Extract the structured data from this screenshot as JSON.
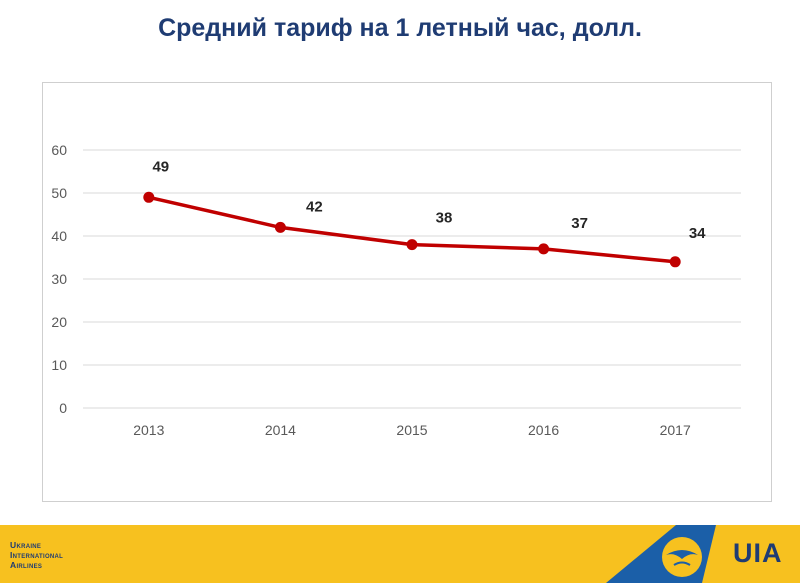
{
  "chart_data": {
    "type": "line",
    "title": "Средний тариф на 1 летный час, долл.",
    "categories": [
      "2013",
      "2014",
      "2015",
      "2016",
      "2017"
    ],
    "series": [
      {
        "values": [
          49,
          42,
          38,
          37,
          34
        ],
        "color": "#c00000"
      }
    ],
    "data_labels": [
      "49",
      "42",
      "38",
      "37",
      "34"
    ],
    "yticks": [
      "0",
      "10",
      "20",
      "30",
      "40",
      "50",
      "60"
    ],
    "ylim": [
      0,
      60
    ],
    "grid": true
  },
  "footer": {
    "brand_line1": "Ukraine",
    "brand_line2": "International",
    "brand_line3": "Airlines",
    "logo_text": "UIA",
    "colors": {
      "footer": "#f7c11f",
      "brand": "#1f3c73",
      "tail": "#1b5fa8"
    }
  }
}
